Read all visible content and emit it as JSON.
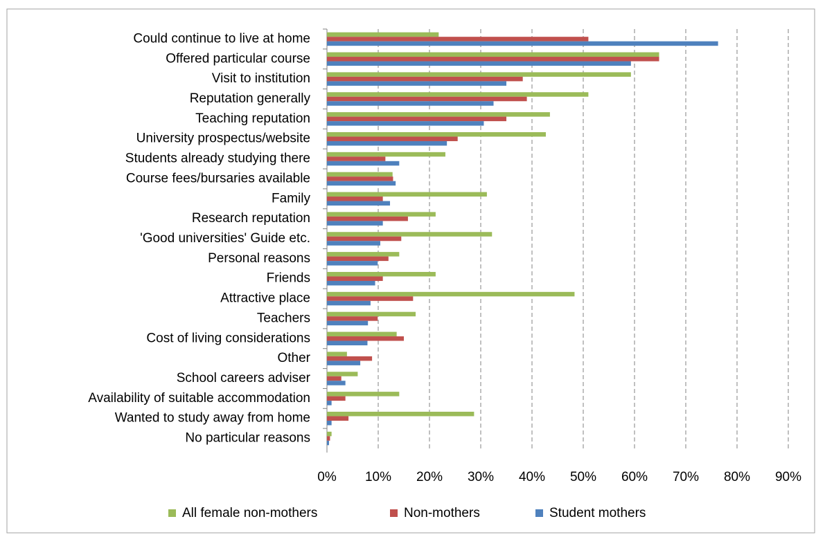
{
  "chart_data": {
    "type": "bar",
    "orientation": "horizontal",
    "categories": [
      "Could continue to live at home",
      "Offered particular course",
      "Visit to institution",
      "Reputation generally",
      "Teaching reputation",
      "University prospectus/website",
      "Students already studying there",
      "Course fees/bursaries available",
      "Family",
      "Research reputation",
      "'Good universities' Guide etc.",
      "Personal reasons",
      "Friends",
      "Attractive place",
      "Teachers",
      "Cost of living considerations",
      "Other",
      "School careers adviser",
      "Availability of suitable accommodation",
      "Wanted to study away from home",
      "No particular reasons"
    ],
    "series": [
      {
        "name": "All female non-mothers",
        "color": "#9bbb59",
        "values": [
          21.8,
          64.8,
          59.3,
          51,
          43.5,
          42.7,
          23.1,
          12.8,
          31.2,
          21.2,
          32.2,
          14.1,
          21.2,
          48.3,
          17.3,
          13.6,
          3.9,
          6,
          14.1,
          28.7,
          0.9
        ]
      },
      {
        "name": "Non-mothers",
        "color": "#c0504d",
        "values": [
          51,
          64.8,
          38.2,
          39,
          35,
          25.5,
          11.4,
          12.9,
          10.9,
          15.8,
          14.5,
          12,
          10.9,
          16.8,
          9.9,
          15,
          8.8,
          2.8,
          3.6,
          4.2,
          0.6
        ]
      },
      {
        "name": "Student mothers",
        "color": "#4f81bd",
        "values": [
          76.3,
          59.3,
          35,
          32.5,
          30.6,
          23.4,
          14.1,
          13.4,
          12.3,
          10.9,
          10.4,
          9.9,
          9.4,
          8.5,
          8,
          7.9,
          6.5,
          3.6,
          0.9,
          0.9,
          0.4
        ]
      }
    ],
    "xlim": [
      0,
      90
    ],
    "xticks": [
      {
        "value": 0,
        "label": "0%"
      },
      {
        "value": 10,
        "label": "10%"
      },
      {
        "value": 20,
        "label": "20%"
      },
      {
        "value": 30,
        "label": "30%"
      },
      {
        "value": 40,
        "label": "40%"
      },
      {
        "value": 50,
        "label": "50%"
      },
      {
        "value": 60,
        "label": "60%"
      },
      {
        "value": 70,
        "label": "70%"
      },
      {
        "value": 80,
        "label": "80%"
      },
      {
        "value": 90,
        "label": "90%"
      }
    ],
    "grid": true,
    "legend": "bottom"
  }
}
